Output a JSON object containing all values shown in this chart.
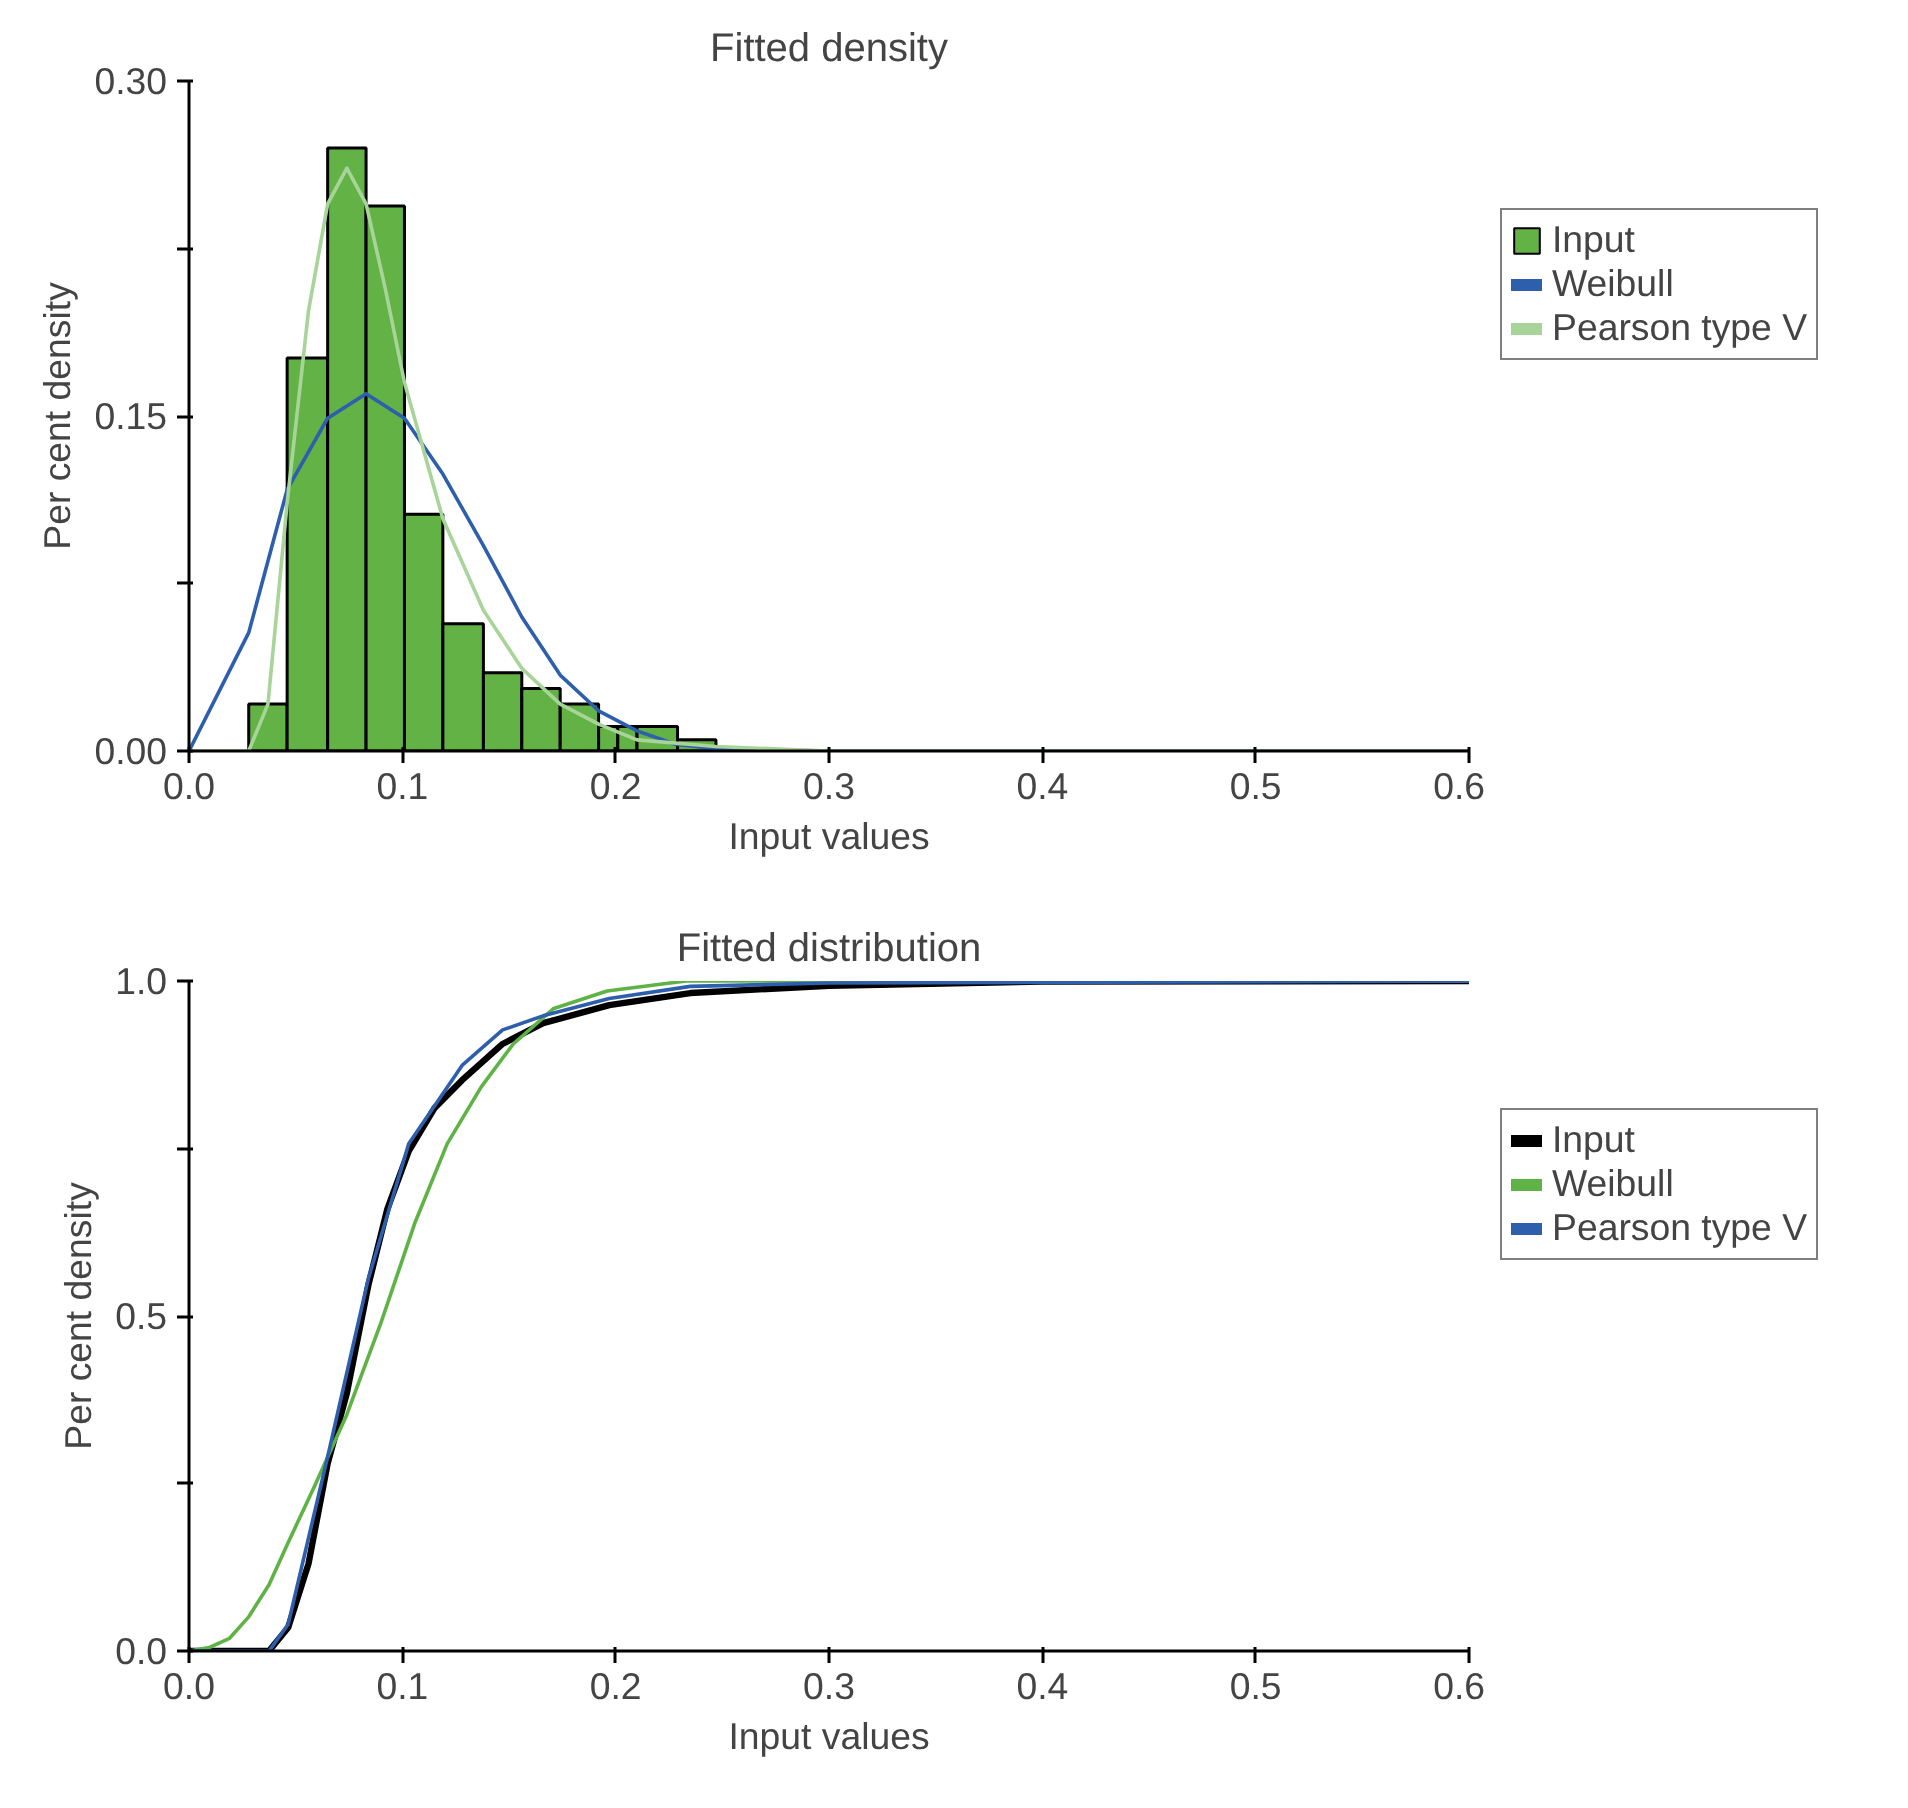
{
  "chart_data": [
    {
      "type": "histogram",
      "title": "Fitted density",
      "xlabel": "Input values",
      "ylabel": "Per cent density",
      "xlim": [
        0,
        0.6
      ],
      "xticks": [
        {
          "value": 0,
          "label": "0.0"
        },
        0.1,
        0.2,
        0.3,
        0.4,
        0.5,
        0.6
      ],
      "ylim": [
        0,
        0.3
      ],
      "yticks": [
        {
          "value": 0,
          "label": "0.00"
        },
        {
          "value": 0.075,
          "label": null
        },
        0.15,
        {
          "value": 0.225,
          "label": null
        },
        {
          "value": 0.3,
          "label": "0.30"
        }
      ],
      "grid": false,
      "legend": "right",
      "bins": [
        0.028,
        0.046,
        0.065,
        0.083,
        0.101,
        0.119,
        0.138,
        0.156,
        0.174,
        0.192,
        0.201,
        0.21,
        0.229,
        0.247
      ],
      "series": [
        {
          "name": "Input",
          "type": "histogram",
          "color": "#62b246",
          "values": [
            0.021,
            0.176,
            0.27,
            0.244,
            0.106,
            0.057,
            0.035,
            0.028,
            0.021,
            0.011,
            0.011,
            0.011,
            0.005
          ]
        },
        {
          "name": "Weibull",
          "type": "line",
          "color": "#2e5fad",
          "x": [
            0,
            0.028,
            0.046,
            0.065,
            0.083,
            0.101,
            0.119,
            0.138,
            0.156,
            0.174,
            0.192,
            0.21,
            0.228,
            0.247,
            0.3,
            0.6
          ],
          "values": [
            0,
            0.053,
            0.117,
            0.149,
            0.16,
            0.149,
            0.124,
            0.092,
            0.06,
            0.034,
            0.018,
            0.009,
            0.003,
            0.001,
            0,
            0
          ]
        },
        {
          "name": "Pearson type V",
          "type": "line",
          "color": "#a8d49a",
          "x": [
            0,
            0.028,
            0.037,
            0.046,
            0.056,
            0.065,
            0.074,
            0.083,
            0.092,
            0.101,
            0.119,
            0.138,
            0.156,
            0.174,
            0.192,
            0.21,
            0.247,
            0.3,
            0.6
          ],
          "values": [
            0,
            0,
            0.021,
            0.111,
            0.197,
            0.245,
            0.261,
            0.245,
            0.207,
            0.165,
            0.104,
            0.063,
            0.037,
            0.021,
            0.012,
            0.005,
            0.002,
            0,
            0
          ]
        }
      ]
    },
    {
      "type": "line",
      "title": "Fitted distribution",
      "xlabel": "Input values",
      "ylabel": "Per cent density",
      "xlim": [
        0,
        0.6
      ],
      "xticks": [
        {
          "value": 0,
          "label": "0.0"
        },
        0.1,
        0.2,
        0.3,
        0.4,
        0.5,
        0.6
      ],
      "ylim": [
        0,
        1
      ],
      "yticks": [
        {
          "value": 0,
          "label": "0.0"
        },
        {
          "value": 0.25,
          "label": null
        },
        0.5,
        {
          "value": 0.75,
          "label": null
        },
        {
          "value": 1,
          "label": "1.0"
        }
      ],
      "grid": false,
      "legend": "right",
      "series": [
        {
          "name": "Input",
          "color": "#000000",
          "x": [
            0,
            0.0375,
            0.0465,
            0.056,
            0.065,
            0.074,
            0.084,
            0.093,
            0.103,
            0.115,
            0.128,
            0.147,
            0.166,
            0.197,
            0.235,
            0.3,
            0.4,
            0.6
          ],
          "values": [
            0,
            0,
            0.035,
            0.13,
            0.28,
            0.385,
            0.545,
            0.66,
            0.746,
            0.81,
            0.852,
            0.906,
            0.937,
            0.964,
            0.982,
            0.993,
            0.999,
            1
          ]
        },
        {
          "name": "Weibull",
          "color": "#5fb346",
          "x": [
            0,
            0.0094,
            0.019,
            0.028,
            0.0375,
            0.0465,
            0.059,
            0.074,
            0.09,
            0.106,
            0.121,
            0.137,
            0.152,
            0.171,
            0.196,
            0.233,
            0.6
          ],
          "values": [
            0,
            0.005,
            0.019,
            0.051,
            0.099,
            0.162,
            0.247,
            0.353,
            0.49,
            0.64,
            0.757,
            0.842,
            0.906,
            0.959,
            0.985,
            1,
            1
          ]
        },
        {
          "name": "Pearson type V",
          "color": "#2e5fac",
          "x": [
            0,
            0.0375,
            0.0465,
            0.065,
            0.084,
            0.103,
            0.128,
            0.147,
            0.166,
            0.197,
            0.235,
            0.3,
            0.6
          ],
          "values": [
            0,
            0,
            0.04,
            0.29,
            0.555,
            0.757,
            0.874,
            0.927,
            0.948,
            0.974,
            0.992,
            0.997,
            1
          ]
        }
      ]
    }
  ]
}
